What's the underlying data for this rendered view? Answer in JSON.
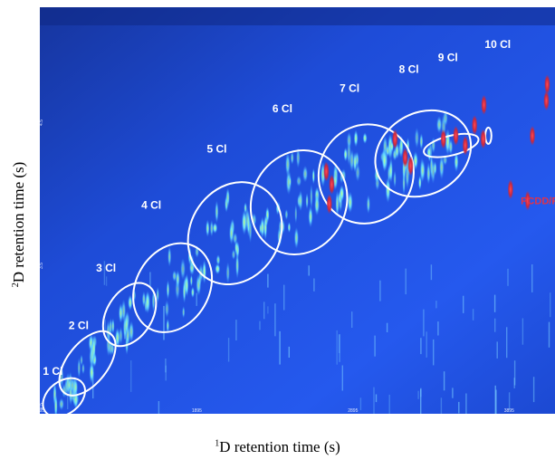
{
  "chart_data": {
    "type": "heatmap",
    "title": "",
    "xlabel_sup": "1",
    "xlabel": "D retention time (s)",
    "ylabel_sup": "2",
    "ylabel": "D retention time (s)",
    "xlim": [
      895,
      4195
    ],
    "ylim": [
      0,
      5
    ],
    "x_ticks": [
      "895",
      "1895",
      "2895",
      "3895"
    ],
    "y_ticks": [
      "2.5",
      "3.5",
      "4.5"
    ],
    "colors": {
      "background_dark": "#0b1a60",
      "background": "#1f4fe0",
      "signal": "#8ff0ff",
      "hot": "#b6ff5a",
      "ellipse": "#ffffff",
      "pcdd_marker": "#d0364a",
      "pcdd_label": "#e0334a"
    },
    "groups": [
      {
        "label": "1 Cl",
        "cx": 1050,
        "cy": 0.2,
        "rx": 150,
        "ry": 0.2,
        "rot": -38
      },
      {
        "label": "2 Cl",
        "cx": 1200,
        "cy": 0.62,
        "rx": 240,
        "ry": 0.25,
        "rot": -52
      },
      {
        "label": "3 Cl",
        "cx": 1470,
        "cy": 1.22,
        "rx": 220,
        "ry": 0.28,
        "rot": -58
      },
      {
        "label": "4 Cl",
        "cx": 1745,
        "cy": 1.55,
        "rx": 300,
        "ry": 0.45,
        "rot": -60
      },
      {
        "label": "5 Cl",
        "cx": 2145,
        "cy": 2.22,
        "rx": 340,
        "ry": 0.55,
        "rot": -60
      },
      {
        "label": "6 Cl",
        "cx": 2555,
        "cy": 2.6,
        "rx": 340,
        "ry": 0.58,
        "rot": -65
      },
      {
        "label": "7 Cl",
        "cx": 2985,
        "cy": 2.95,
        "rx": 320,
        "ry": 0.58,
        "rot": -68
      },
      {
        "label": "8 Cl",
        "cx": 3350,
        "cy": 3.2,
        "rx": 320,
        "ry": 0.5,
        "rot": -30
      },
      {
        "label": "9 Cl",
        "cx": 3530,
        "cy": 3.3,
        "rx": 180,
        "ry": 0.12,
        "rot": -14
      },
      {
        "label": "10 Cl",
        "cx": 3768,
        "cy": 3.42,
        "rx": 20,
        "ry": 0.1,
        "rot": 0
      }
    ],
    "group_labels": [
      {
        "text": "1 Cl",
        "x": 915,
        "y": 0.48
      },
      {
        "text": "2 Cl",
        "x": 1080,
        "y": 1.04
      },
      {
        "text": "3 Cl",
        "x": 1255,
        "y": 1.75
      },
      {
        "text": "4 Cl",
        "x": 1545,
        "y": 2.52
      },
      {
        "text": "5 Cl",
        "x": 1965,
        "y": 3.21
      },
      {
        "text": "6 Cl",
        "x": 2385,
        "y": 3.71
      },
      {
        "text": "7 Cl",
        "x": 2815,
        "y": 3.96
      },
      {
        "text": "8 Cl",
        "x": 3195,
        "y": 4.19
      },
      {
        "text": "9 Cl",
        "x": 3445,
        "y": 4.34
      },
      {
        "text": "10 Cl",
        "x": 3745,
        "y": 4.5
      }
    ],
    "pcdd_label": {
      "text": "PCDD/Fs",
      "x": 3975,
      "y": 2.58
    },
    "pcdd_markers": [
      {
        "x": 2730,
        "y": 2.98
      },
      {
        "x": 2765,
        "y": 2.82
      },
      {
        "x": 2750,
        "y": 2.58
      },
      {
        "x": 3170,
        "y": 3.38
      },
      {
        "x": 3235,
        "y": 3.15
      },
      {
        "x": 3270,
        "y": 3.05
      },
      {
        "x": 3480,
        "y": 3.38
      },
      {
        "x": 3560,
        "y": 3.42
      },
      {
        "x": 3620,
        "y": 3.3
      },
      {
        "x": 3680,
        "y": 3.55
      },
      {
        "x": 3740,
        "y": 3.8
      },
      {
        "x": 3735,
        "y": 3.38
      },
      {
        "x": 4050,
        "y": 3.42
      },
      {
        "x": 4140,
        "y": 3.85
      },
      {
        "x": 4145,
        "y": 4.05
      },
      {
        "x": 3910,
        "y": 2.76
      },
      {
        "x": 4020,
        "y": 2.62
      }
    ]
  }
}
